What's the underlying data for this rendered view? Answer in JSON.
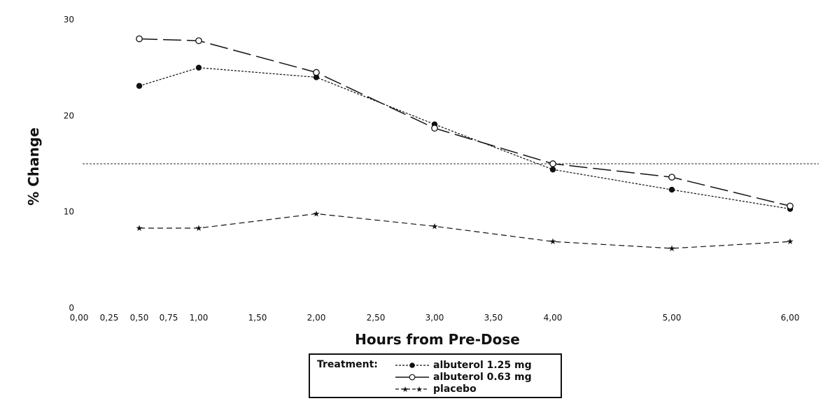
{
  "chart_data": {
    "type": "line",
    "x_ticks": [
      "0,00",
      "0,25",
      "0,50",
      "0,75",
      "1,00",
      "1,50",
      "2,00",
      "2,50",
      "3,00",
      "3,50",
      "4,00",
      "5,00",
      "6,00"
    ],
    "y_ticks": [
      "0",
      "10",
      "20",
      "30"
    ],
    "ylim": [
      0,
      30
    ],
    "xlabel": "Hours from Pre-Dose",
    "ylabel": "% Change",
    "legend_placement": "bottom-center",
    "legend_title": "Treatment:",
    "reference_line": {
      "y": 15,
      "style": "dotted"
    },
    "series": [
      {
        "name": "albuterol 1.25 mg",
        "marker": "filled-circle",
        "dash": "short-dash",
        "color": "#111111",
        "points": [
          [
            0.5,
            23.1
          ],
          [
            1.0,
            25.0
          ],
          [
            2.0,
            24.0
          ],
          [
            3.0,
            19.1
          ],
          [
            4.0,
            14.4
          ],
          [
            5.0,
            12.3
          ],
          [
            6.0,
            10.3
          ]
        ]
      },
      {
        "name": "albuterol 0.63 mg",
        "marker": "open-circle",
        "dash": "long-dash",
        "color": "#111111",
        "points": [
          [
            0.5,
            28.0
          ],
          [
            1.0,
            27.8
          ],
          [
            2.0,
            24.5
          ],
          [
            3.0,
            18.7
          ],
          [
            4.0,
            15.0
          ],
          [
            5.0,
            13.6
          ],
          [
            6.0,
            10.6
          ]
        ]
      },
      {
        "name": "placebo",
        "marker": "star",
        "dash": "dash",
        "color": "#111111",
        "points": [
          [
            0.5,
            8.3
          ],
          [
            1.0,
            8.3
          ],
          [
            2.0,
            9.8
          ],
          [
            3.0,
            8.5
          ],
          [
            4.0,
            6.9
          ],
          [
            5.0,
            6.2
          ],
          [
            6.0,
            6.9
          ]
        ]
      }
    ]
  }
}
